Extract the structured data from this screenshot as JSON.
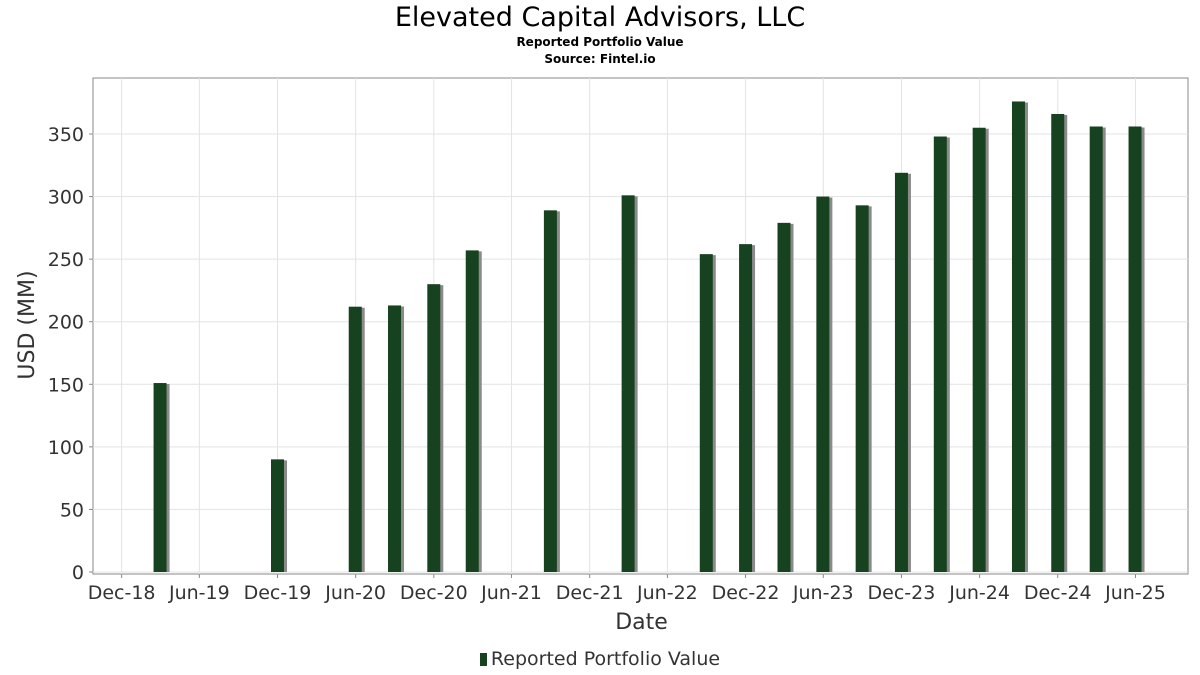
{
  "chart_data": {
    "type": "bar",
    "title": "Elevated Capital Advisors, LLC",
    "subtitle": "Reported Portfolio Value",
    "source": "Source: Fintel.io",
    "xlabel": "Date",
    "ylabel": "USD (MM)",
    "ylim": [
      0,
      400
    ],
    "yticks": [
      0,
      50,
      100,
      150,
      200,
      250,
      300,
      350
    ],
    "xticks": [
      "Dec-18",
      "Jun-19",
      "Dec-19",
      "Jun-20",
      "Dec-20",
      "Jun-21",
      "Dec-21",
      "Jun-22",
      "Dec-22",
      "Jun-23",
      "Dec-23",
      "Jun-24",
      "Dec-24",
      "Jun-25"
    ],
    "grid": true,
    "legend_position": "bottom-center",
    "bar_color": "#17421f",
    "series": [
      {
        "name": "Reported Portfolio Value",
        "points": [
          {
            "date": "2019-03-31",
            "value": 151
          },
          {
            "date": "2019-12-31",
            "value": 90
          },
          {
            "date": "2020-06-30",
            "value": 212
          },
          {
            "date": "2020-09-30",
            "value": 213
          },
          {
            "date": "2020-12-31",
            "value": 230
          },
          {
            "date": "2021-03-31",
            "value": 257
          },
          {
            "date": "2021-09-30",
            "value": 289
          },
          {
            "date": "2022-03-31",
            "value": 301
          },
          {
            "date": "2022-09-30",
            "value": 254
          },
          {
            "date": "2022-12-31",
            "value": 262
          },
          {
            "date": "2023-03-31",
            "value": 279
          },
          {
            "date": "2023-06-30",
            "value": 300
          },
          {
            "date": "2023-09-30",
            "value": 293
          },
          {
            "date": "2023-12-31",
            "value": 319
          },
          {
            "date": "2024-03-31",
            "value": 348
          },
          {
            "date": "2024-06-30",
            "value": 355
          },
          {
            "date": "2024-09-30",
            "value": 376
          },
          {
            "date": "2024-12-31",
            "value": 366
          },
          {
            "date": "2025-03-31",
            "value": 356
          },
          {
            "date": "2025-06-30",
            "value": 356
          }
        ]
      }
    ]
  }
}
